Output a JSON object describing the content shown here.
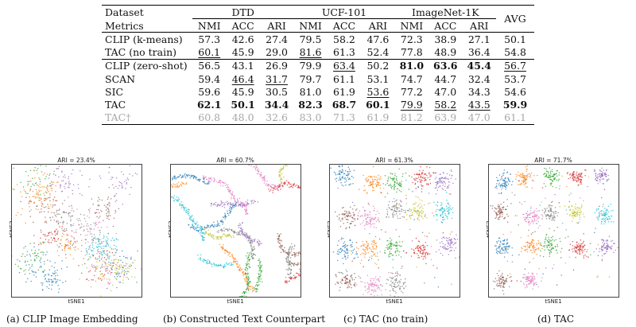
{
  "table": {
    "header": {
      "dataset_label": "Dataset",
      "metrics_label": "Metrics",
      "groups": [
        "DTD",
        "UCF-101",
        "ImageNet-1K"
      ],
      "avg_label": "AVG",
      "sub": [
        "NMI",
        "ACC",
        "ARI",
        "NMI",
        "ACC",
        "ARI",
        "NMI",
        "ACC",
        "ARI"
      ]
    },
    "block1": [
      {
        "name": "CLIP (k-means)",
        "values": [
          "57.3",
          "42.6",
          "27.4",
          "79.5",
          "58.2",
          "47.6",
          "72.3",
          "38.9",
          "27.1",
          "50.1"
        ],
        "bold": [],
        "underline": []
      },
      {
        "name": "TAC (no train)",
        "values": [
          "60.1",
          "45.9",
          "29.0",
          "81.6",
          "61.3",
          "52.4",
          "77.8",
          "48.9",
          "36.4",
          "54.8"
        ],
        "bold": [],
        "underline": [
          0,
          3
        ]
      }
    ],
    "block2": [
      {
        "name": "CLIP (zero-shot)",
        "values": [
          "56.5",
          "43.1",
          "26.9",
          "79.9",
          "63.4",
          "50.2",
          "81.0",
          "63.6",
          "45.4",
          "56.7"
        ],
        "bold": [
          6,
          7,
          8
        ],
        "underline": [
          4,
          9
        ]
      },
      {
        "name": "SCAN",
        "values": [
          "59.4",
          "46.4",
          "31.7",
          "79.7",
          "61.1",
          "53.1",
          "74.7",
          "44.7",
          "32.4",
          "53.7"
        ],
        "bold": [],
        "underline": [
          1,
          2
        ]
      },
      {
        "name": "SIC",
        "values": [
          "59.6",
          "45.9",
          "30.5",
          "81.0",
          "61.9",
          "53.6",
          "77.2",
          "47.0",
          "34.3",
          "54.6"
        ],
        "bold": [],
        "underline": [
          5
        ]
      },
      {
        "name": "TAC",
        "values": [
          "62.1",
          "50.1",
          "34.4",
          "82.3",
          "68.7",
          "60.1",
          "79.9",
          "58.2",
          "43.5",
          "59.9"
        ],
        "bold": [
          0,
          1,
          2,
          3,
          4,
          5,
          9
        ],
        "underline": [
          6,
          7,
          8
        ]
      }
    ],
    "dagger_row": {
      "name": "TAC†",
      "values": [
        "60.8",
        "48.0",
        "32.6",
        "83.0",
        "71.3",
        "61.9",
        "81.2",
        "63.9",
        "47.0",
        "61.1"
      ]
    }
  },
  "panels": [
    {
      "ari": "ARI = 23.4%",
      "caption": "(a) CLIP Image Embedding",
      "xlabel": "tSNE1",
      "ylabel": "tSNE2"
    },
    {
      "ari": "ARI = 60.7%",
      "caption": "(b) Constructed Text Counterpart",
      "xlabel": "tSNE1",
      "ylabel": "tSNE2"
    },
    {
      "ari": "ARI = 61.3%",
      "caption": "(c) TAC (no train)",
      "xlabel": "tSNE1",
      "ylabel": "tSNE2"
    },
    {
      "ari": "ARI = 71.7%",
      "caption": "(d) TAC",
      "xlabel": "tSNE1",
      "ylabel": "tSNE2"
    }
  ],
  "cluster_colors": [
    "#1f77b4",
    "#ff7f0e",
    "#2ca02c",
    "#d62728",
    "#9467bd",
    "#8c564b",
    "#e377c2",
    "#7f7f7f",
    "#bcbd22",
    "#17becf"
  ]
}
